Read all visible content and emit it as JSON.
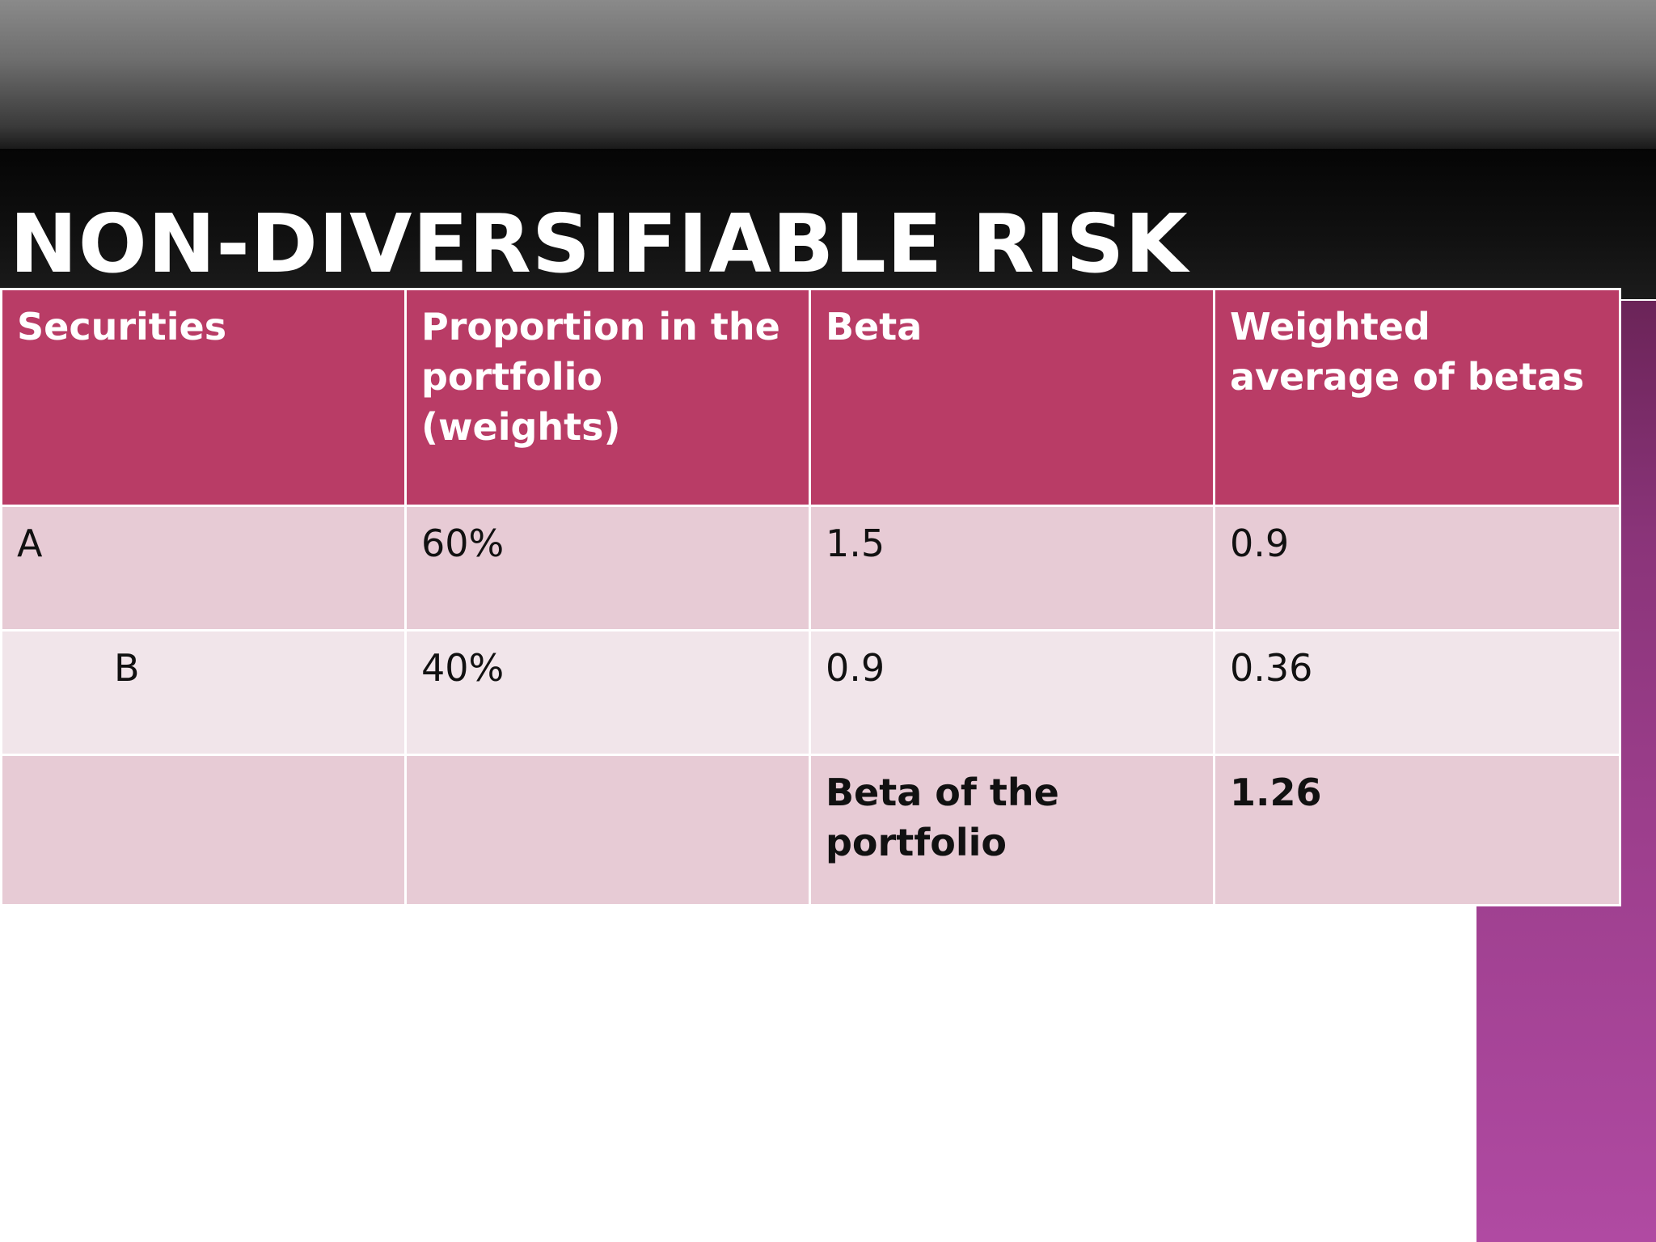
{
  "slide": {
    "title": "NON-DIVERSIFIABLE RISK",
    "colors": {
      "header_fill": "#b93c66",
      "row_fill_dark": "#e7cbd5",
      "row_fill_light": "#f1e5ea",
      "accent_strip": "#9c3e8c",
      "title_band": "#111111"
    }
  },
  "table": {
    "headers": [
      "Securities",
      "Proportion in the portfolio (weights)",
      "Beta",
      "Weighted average of betas"
    ],
    "rows": [
      {
        "security": "A",
        "weight": "60%",
        "beta": "1.5",
        "weighted": "0.9"
      },
      {
        "security": "B",
        "weight": "40%",
        "beta": "0.9",
        "weighted": "0.36"
      }
    ],
    "total": {
      "label": "Beta of the portfolio",
      "value": "1.26"
    }
  }
}
